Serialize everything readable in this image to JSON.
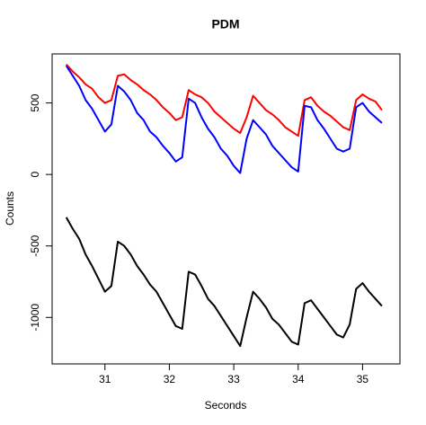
{
  "chart_data": {
    "type": "line",
    "title": "PDM",
    "x_label": "Seconds",
    "y_label": "Counts",
    "x": [
      30.4,
      30.5,
      30.6,
      30.7,
      30.8,
      30.9,
      31.0,
      31.1,
      31.2,
      31.3,
      31.4,
      31.5,
      31.6,
      31.7,
      31.8,
      31.9,
      32.0,
      32.1,
      32.2,
      32.3,
      32.4,
      32.5,
      32.6,
      32.7,
      32.8,
      32.9,
      33.0,
      33.1,
      33.2,
      33.3,
      33.4,
      33.5,
      33.6,
      33.7,
      33.8,
      33.9,
      34.0,
      34.1,
      34.2,
      34.3,
      34.4,
      34.5,
      34.6,
      34.7,
      34.8,
      34.9,
      35.0,
      35.1,
      35.2,
      35.3
    ],
    "series": [
      {
        "color": "#ff0000",
        "values": [
          770,
          720,
          680,
          630,
          600,
          540,
          500,
          520,
          690,
          700,
          660,
          630,
          590,
          560,
          520,
          470,
          430,
          380,
          400,
          590,
          560,
          540,
          500,
          440,
          400,
          360,
          320,
          290,
          400,
          550,
          500,
          450,
          420,
          380,
          330,
          300,
          270,
          520,
          540,
          480,
          440,
          410,
          370,
          330,
          310,
          520,
          560,
          530,
          510,
          450
        ]
      },
      {
        "color": "#0000ff",
        "values": [
          760,
          690,
          620,
          520,
          460,
          380,
          300,
          350,
          620,
          580,
          520,
          430,
          380,
          300,
          260,
          200,
          150,
          90,
          120,
          530,
          500,
          400,
          320,
          260,
          180,
          130,
          60,
          10,
          250,
          380,
          330,
          280,
          200,
          150,
          100,
          50,
          20,
          480,
          470,
          380,
          320,
          250,
          180,
          160,
          180,
          470,
          500,
          440,
          400,
          360
        ]
      },
      {
        "color": "#000000",
        "values": [
          -300,
          -380,
          -450,
          -560,
          -640,
          -730,
          -820,
          -780,
          -470,
          -500,
          -560,
          -640,
          -700,
          -770,
          -820,
          -900,
          -980,
          -1060,
          -1080,
          -680,
          -700,
          -780,
          -870,
          -920,
          -990,
          -1060,
          -1130,
          -1200,
          -1000,
          -820,
          -870,
          -930,
          -1010,
          -1050,
          -1110,
          -1170,
          -1190,
          -900,
          -880,
          -940,
          -1000,
          -1060,
          -1120,
          -1140,
          -1050,
          -800,
          -760,
          -820,
          -870,
          -920
        ]
      }
    ],
    "xlim": [
      30.18,
      35.58
    ],
    "ylim": [
      -1325,
      843
    ],
    "xticks": [
      31,
      32,
      33,
      34,
      35
    ],
    "yticks": [
      -1000,
      -500,
      0,
      500
    ]
  }
}
